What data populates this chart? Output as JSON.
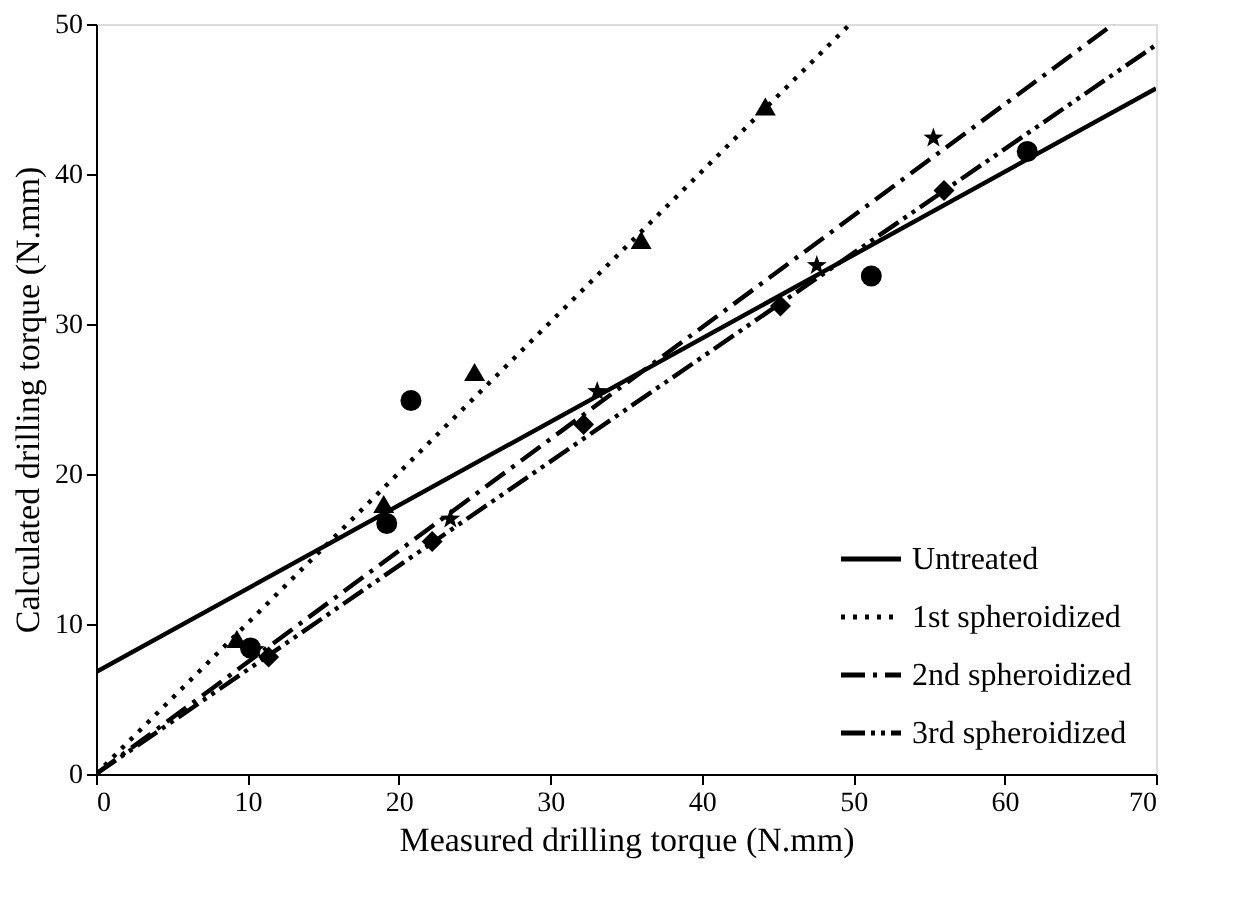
{
  "chart_data": {
    "type": "scatter",
    "xlabel": "Measured drilling torque (N.mm)",
    "ylabel": "Calculated drilling torque (N.mm)",
    "xlim": [
      0,
      70
    ],
    "ylim": [
      0,
      50
    ],
    "xticks": [
      0,
      10,
      20,
      30,
      40,
      50,
      60,
      70
    ],
    "yticks": [
      0,
      10,
      20,
      30,
      40,
      50
    ],
    "grid": false,
    "legend": "bottom right",
    "series": [
      {
        "marker": "circle",
        "color": "#000000",
        "x": [
          10.2,
          19.2,
          20.8,
          51.2,
          61.5
        ],
        "values": [
          8.4,
          16.7,
          24.9,
          33.2,
          41.5
        ]
      },
      {
        "marker": "triangle",
        "color": "#000000",
        "x": [
          9.3,
          19,
          25,
          36,
          44.2
        ],
        "values": [
          9,
          18,
          26.8,
          35.6,
          44.5
        ]
      },
      {
        "marker": "star",
        "color": "#000000",
        "x": [
          10.5,
          23.4,
          33.1,
          47.6,
          55.3
        ],
        "values": [
          8.3,
          17,
          25.5,
          33.9,
          42.4
        ]
      },
      {
        "marker": "diamond",
        "color": "#000000",
        "x": [
          11.4,
          22.2,
          32.2,
          45.2,
          56
        ],
        "values": [
          7.8,
          15.5,
          23.3,
          31.2,
          38.9
        ]
      },
      {
        "type": "line",
        "name": "Untreated",
        "line_style": "solid",
        "color": "#000000",
        "x": [
          0,
          70
        ],
        "values": [
          6.8,
          45.7
        ]
      },
      {
        "type": "line",
        "name": "1st spheroidized",
        "line_style": "dotted",
        "color": "#000000",
        "x": [
          0,
          49.8
        ],
        "values": [
          0,
          50
        ]
      },
      {
        "type": "line",
        "name": "2nd spheroidized",
        "line_style": "dashdot",
        "color": "#000000",
        "x": [
          0,
          67.2
        ],
        "values": [
          0,
          50
        ]
      },
      {
        "type": "line",
        "name": "3rd spheroidized",
        "line_style": "dashdotdot",
        "color": "#000000",
        "x": [
          0,
          70
        ],
        "values": [
          0,
          48.6
        ]
      }
    ]
  }
}
